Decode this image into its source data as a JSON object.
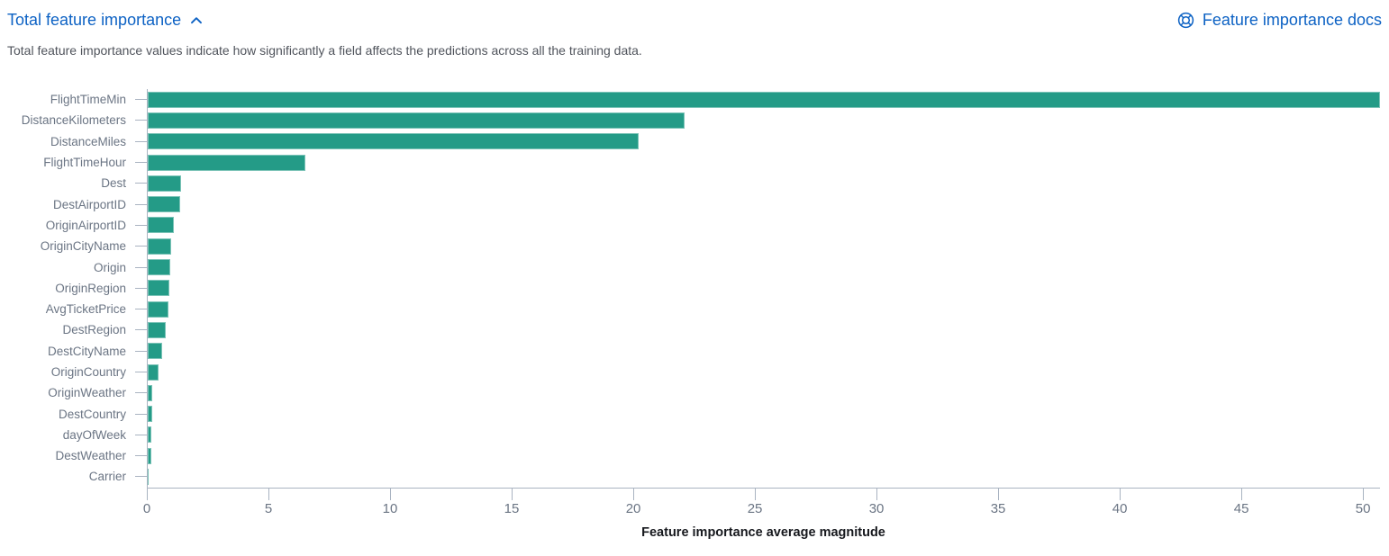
{
  "header": {
    "title": "Total feature importance",
    "docs_link_label": "Feature importance docs"
  },
  "description": "Total feature importance values indicate how significantly a field affects the predictions across all the training data.",
  "colors": {
    "bar": "#249b87",
    "link_blue": "#0d62c4",
    "axis_line": "#a9b3c1",
    "axis_text": "#6b7584",
    "description_text": "#50545c",
    "axis_title_text": "#16181d"
  },
  "chart_data": {
    "type": "bar",
    "orientation": "horizontal",
    "title": "Total feature importance",
    "xlabel": "Feature importance average magnitude",
    "categories": [
      "FlightTimeMin",
      "DistanceKilometers",
      "DistanceMiles",
      "FlightTimeHour",
      "Dest",
      "DestAirportID",
      "OriginAirportID",
      "OriginCityName",
      "Origin",
      "OriginRegion",
      "AvgTicketPrice",
      "DestRegion",
      "DestCityName",
      "OriginCountry",
      "OriginWeather",
      "DestCountry",
      "dayOfWeek",
      "DestWeather",
      "Carrier"
    ],
    "values": [
      50.7,
      22.1,
      20.2,
      6.5,
      1.37,
      1.33,
      1.07,
      0.97,
      0.94,
      0.88,
      0.86,
      0.73,
      0.59,
      0.43,
      0.2,
      0.17,
      0.16,
      0.14,
      0.05
    ],
    "xlim": [
      0,
      50.7
    ],
    "xticks": [
      0,
      5,
      10,
      15,
      20,
      25,
      30,
      35,
      40,
      45,
      50
    ],
    "grid": false,
    "legend": false,
    "bar_color": "#249b87"
  }
}
